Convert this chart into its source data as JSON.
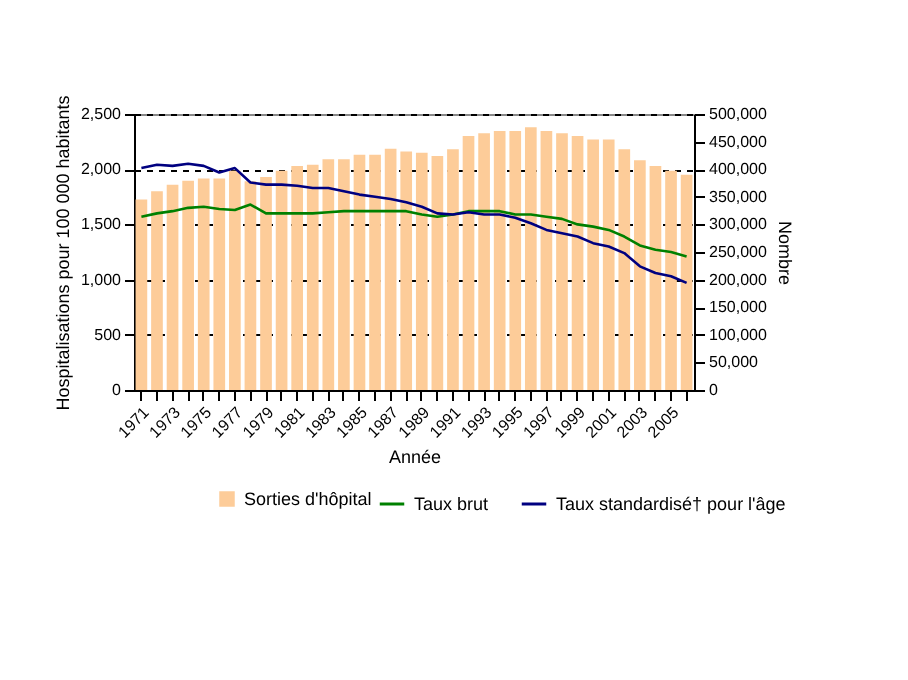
{
  "chart_data": {
    "type": "bar",
    "xlabel": "Année",
    "ylabel": "Hospitalisations pour 100 000 habitants",
    "y2label": "Nombre",
    "categories": [
      "1971",
      null,
      "1973",
      null,
      "1975",
      null,
      "1977",
      null,
      "1979",
      null,
      "1981",
      null,
      "1983",
      null,
      "1985",
      null,
      "1987",
      null,
      "1989",
      null,
      "1991",
      null,
      "1993",
      null,
      "1995",
      null,
      "1997",
      null,
      "1999",
      null,
      "2001",
      null,
      "2003",
      null,
      "2005",
      null
    ],
    "series": [
      {
        "name": "Sorties d'hôpital",
        "axis": "y2",
        "color": "#fdcc99",
        "values": [
          345000,
          360000,
          372000,
          379000,
          383000,
          383000,
          397000,
          378000,
          386000,
          397000,
          406000,
          408000,
          418000,
          418000,
          426000,
          426000,
          437000,
          432000,
          430000,
          424000,
          436000,
          460000,
          465000,
          469000,
          469000,
          476000,
          469000,
          465000,
          460000,
          454000,
          454000,
          436000,
          416000,
          406000,
          397000,
          390000
        ]
      },
      {
        "name": "Taux brut",
        "type": "line",
        "color": "#008000",
        "values": [
          1570,
          1600,
          1620,
          1650,
          1660,
          1640,
          1630,
          1680,
          1600,
          1600,
          1600,
          1600,
          1610,
          1620,
          1620,
          1620,
          1620,
          1620,
          1590,
          1570,
          1590,
          1620,
          1620,
          1620,
          1590,
          1590,
          1570,
          1550,
          1500,
          1480,
          1450,
          1390,
          1310,
          1270,
          1250,
          1210
        ]
      },
      {
        "name": "Taux standardisé† pour l'âge",
        "type": "line",
        "color": "#000080",
        "values": [
          2010,
          2040,
          2030,
          2050,
          2030,
          1970,
          2010,
          1880,
          1860,
          1860,
          1850,
          1830,
          1830,
          1800,
          1770,
          1750,
          1730,
          1700,
          1660,
          1600,
          1590,
          1610,
          1590,
          1590,
          1560,
          1510,
          1450,
          1420,
          1390,
          1330,
          1300,
          1240,
          1120,
          1060,
          1030,
          970
        ]
      }
    ],
    "ylim": [
      0,
      2500
    ],
    "yticks": [
      0,
      500,
      {
        "value": 1000,
        "label": "1,000"
      },
      {
        "value": 1500,
        "label": "1,500"
      },
      {
        "value": 2000,
        "label": "2,000"
      },
      {
        "value": 2500,
        "label": "2,500"
      }
    ],
    "y2lim": [
      0,
      500000
    ],
    "y2ticks": [
      0,
      {
        "value": 50000,
        "label": "50,000"
      },
      {
        "value": 100000,
        "label": "100,000"
      },
      {
        "value": 150000,
        "label": "150,000"
      },
      {
        "value": 200000,
        "label": "200,000"
      },
      {
        "value": 250000,
        "label": "250,000"
      },
      {
        "value": 300000,
        "label": "300,000"
      },
      {
        "value": 350000,
        "label": "350,000"
      },
      {
        "value": 400000,
        "label": "400,000"
      },
      {
        "value": 450000,
        "label": "450,000"
      },
      {
        "value": 500000,
        "label": "500,000"
      }
    ],
    "grid": "y",
    "legend": "bottom"
  }
}
